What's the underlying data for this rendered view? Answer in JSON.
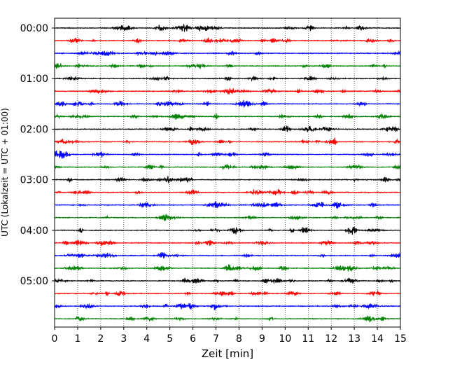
{
  "chart_data": {
    "type": "line",
    "title": "",
    "xlabel": "Zeit  [min]",
    "ylabel": "UTC (Lokalzeit = UTC + 01:00)",
    "xlim": [
      0,
      15
    ],
    "x_ticks": [
      0,
      1,
      2,
      3,
      4,
      5,
      6,
      7,
      8,
      9,
      10,
      11,
      12,
      13,
      14,
      15
    ],
    "x_grid": "dotted vertical lines at each minute",
    "y_tick_labels": [
      "00:00",
      "01:00",
      "02:00",
      "03:00",
      "04:00",
      "05:00"
    ],
    "trace_interval_minutes": 15,
    "trace_count": 24,
    "trace_colors": [
      "#000000",
      "#ff0000",
      "#0000ff",
      "#008000"
    ],
    "series": [
      {
        "start": "00:00",
        "color": "#000000"
      },
      {
        "start": "00:15",
        "color": "#ff0000"
      },
      {
        "start": "00:30",
        "color": "#0000ff"
      },
      {
        "start": "00:45",
        "color": "#008000"
      },
      {
        "start": "01:00",
        "color": "#000000"
      },
      {
        "start": "01:15",
        "color": "#ff0000"
      },
      {
        "start": "01:30",
        "color": "#0000ff"
      },
      {
        "start": "01:45",
        "color": "#008000"
      },
      {
        "start": "02:00",
        "color": "#000000"
      },
      {
        "start": "02:15",
        "color": "#ff0000"
      },
      {
        "start": "02:30",
        "color": "#0000ff"
      },
      {
        "start": "02:45",
        "color": "#008000"
      },
      {
        "start": "03:00",
        "color": "#000000"
      },
      {
        "start": "03:15",
        "color": "#ff0000"
      },
      {
        "start": "03:30",
        "color": "#0000ff"
      },
      {
        "start": "03:45",
        "color": "#008000"
      },
      {
        "start": "04:00",
        "color": "#000000"
      },
      {
        "start": "04:15",
        "color": "#ff0000"
      },
      {
        "start": "04:30",
        "color": "#0000ff"
      },
      {
        "start": "04:45",
        "color": "#008000"
      },
      {
        "start": "05:00",
        "color": "#000000"
      },
      {
        "start": "05:15",
        "color": "#ff0000"
      },
      {
        "start": "05:30",
        "color": "#0000ff"
      },
      {
        "start": "05:45",
        "color": "#008000"
      }
    ]
  }
}
